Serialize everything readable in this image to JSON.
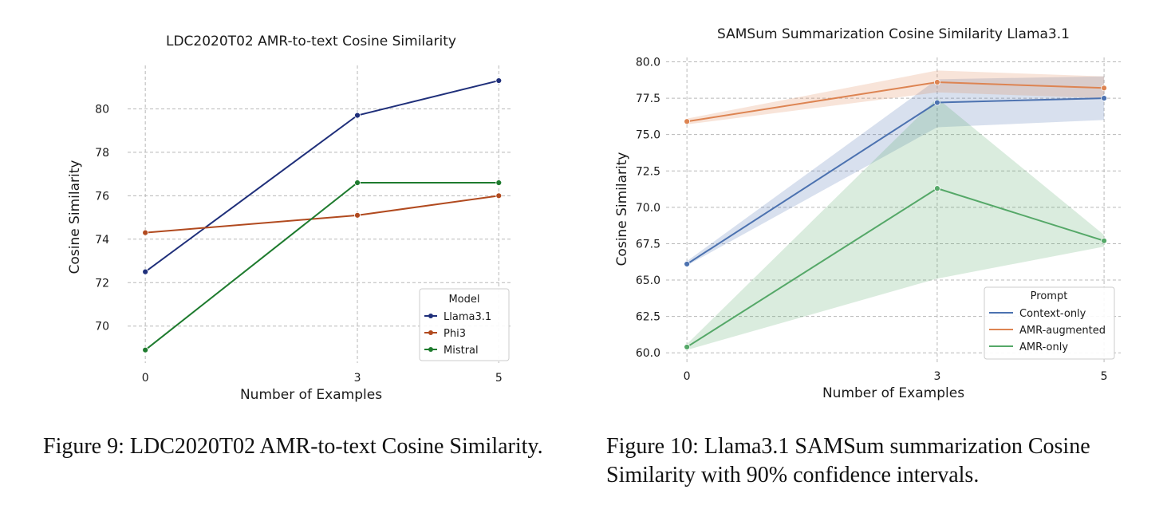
{
  "chart_data": [
    {
      "type": "line",
      "title": "LDC2020T02 AMR-to-text Cosine Similarity",
      "xlabel": "Number of Examples",
      "ylabel": "Cosine Similarity",
      "x": [
        0,
        3,
        5
      ],
      "xlim": [
        -0.25,
        5.2
      ],
      "ylim": [
        68.3,
        82.0
      ],
      "yticks": [
        70,
        72,
        74,
        76,
        78,
        80
      ],
      "grid": true,
      "legend": {
        "title": "Model",
        "position": "lower-right"
      },
      "series": [
        {
          "name": "Llama3.1",
          "values": [
            72.5,
            79.7,
            81.3
          ],
          "color": "#1f2f7a"
        },
        {
          "name": "Phi3",
          "values": [
            74.3,
            75.1,
            76.0
          ],
          "color": "#b14a1f"
        },
        {
          "name": "Mistral",
          "values": [
            68.9,
            76.6,
            76.6
          ],
          "color": "#1e7b2e"
        }
      ],
      "caption": "Figure 9: LDC2020T02 AMR-to-text Cosine Similarity."
    },
    {
      "type": "line",
      "title": "SAMSum Summarization Cosine Similarity Llama3.1",
      "xlabel": "Number of Examples",
      "ylabel": "Cosine Similarity",
      "x": [
        0,
        3,
        5
      ],
      "xlim": [
        -0.25,
        5.2
      ],
      "ylim": [
        59.3,
        80.3
      ],
      "yticks": [
        60.0,
        62.5,
        65.0,
        67.5,
        70.0,
        72.5,
        75.0,
        77.5,
        80.0
      ],
      "grid": true,
      "legend": {
        "title": "Prompt",
        "position": "lower-right"
      },
      "series": [
        {
          "name": "Context-only",
          "values": [
            66.1,
            77.2,
            77.5
          ],
          "ci_low": [
            66.0,
            75.5,
            76.0
          ],
          "ci_high": [
            66.3,
            78.8,
            79.0
          ],
          "color": "#4c72b0"
        },
        {
          "name": "AMR-augmented",
          "values": [
            75.9,
            78.6,
            78.2
          ],
          "ci_low": [
            75.7,
            77.9,
            77.5
          ],
          "ci_high": [
            76.1,
            79.4,
            79.0
          ],
          "color": "#dd8452"
        },
        {
          "name": "AMR-only",
          "values": [
            60.4,
            71.3,
            67.7
          ],
          "ci_low": [
            60.2,
            65.1,
            67.3
          ],
          "ci_high": [
            60.6,
            77.5,
            68.1
          ],
          "color": "#55a868"
        }
      ],
      "caption": "Figure 10: Llama3.1 SAMSum summarization Cosine Similarity with 90% confidence intervals."
    }
  ]
}
